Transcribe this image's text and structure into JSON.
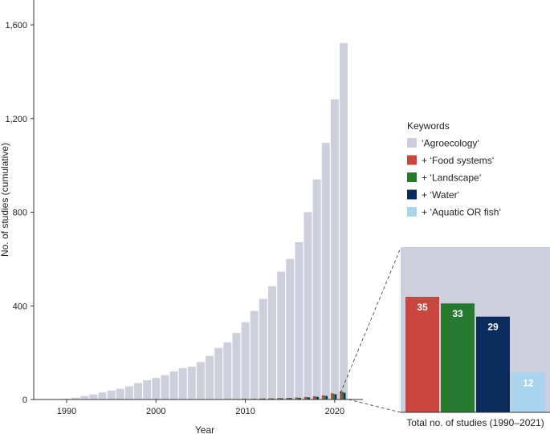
{
  "chart_data": {
    "type": "bar",
    "title": "",
    "xlabel": "Year",
    "ylabel": "No. of studies (cumulative)",
    "ylim": [
      0,
      1700
    ],
    "yticks": [
      0,
      400,
      800,
      1200,
      1600
    ],
    "ytick_labels": [
      "0",
      "400",
      "800",
      "1,200",
      "1,600"
    ],
    "xticks": [
      1990,
      2000,
      2010,
      2020
    ],
    "xtick_labels": [
      "1990",
      "2000",
      "2010",
      "2020"
    ],
    "years": [
      1990,
      1991,
      1992,
      1993,
      1994,
      1995,
      1996,
      1997,
      1998,
      1999,
      2000,
      2001,
      2002,
      2003,
      2004,
      2005,
      2006,
      2007,
      2008,
      2009,
      2010,
      2011,
      2012,
      2013,
      2014,
      2015,
      2016,
      2017,
      2018,
      2019,
      2020,
      2021
    ],
    "series": [
      {
        "name": "‘Agroecology‘",
        "color": "#cdcfdc",
        "values": [
          3,
          8,
          15,
          22,
          30,
          38,
          46,
          56,
          70,
          82,
          92,
          104,
          120,
          134,
          140,
          160,
          186,
          220,
          244,
          284,
          330,
          378,
          430,
          484,
          546,
          600,
          672,
          800,
          940,
          1096,
          1282,
          1522
        ]
      },
      {
        "name": "+ ‘Food systems‘",
        "color": "#c8463d",
        "values": [
          0,
          0,
          0,
          0,
          0,
          0,
          0,
          0,
          0,
          0,
          0,
          0,
          0,
          0,
          1,
          1,
          1,
          1,
          2,
          2,
          3,
          3,
          4,
          5,
          6,
          7,
          9,
          11,
          14,
          18,
          27,
          35
        ]
      },
      {
        "name": "+ ‘Landscape‘",
        "color": "#27792f",
        "values": [
          0,
          0,
          0,
          0,
          0,
          0,
          0,
          0,
          0,
          0,
          0,
          0,
          0,
          1,
          1,
          1,
          1,
          2,
          2,
          2,
          3,
          3,
          4,
          5,
          6,
          7,
          8,
          10,
          13,
          17,
          25,
          33
        ]
      },
      {
        "name": "+ ‘Water‘",
        "color": "#0b2b5c",
        "values": [
          0,
          0,
          0,
          0,
          0,
          0,
          0,
          0,
          0,
          0,
          0,
          0,
          0,
          0,
          1,
          1,
          1,
          1,
          2,
          2,
          2,
          3,
          4,
          4,
          5,
          6,
          7,
          9,
          11,
          15,
          22,
          29
        ]
      },
      {
        "name": "+ ‘Aquatic OR fish‘",
        "color": "#a9d4ee",
        "values": [
          0,
          0,
          0,
          0,
          0,
          0,
          0,
          0,
          0,
          0,
          0,
          0,
          0,
          0,
          0,
          0,
          0,
          0,
          0,
          0,
          0,
          0,
          0,
          1,
          1,
          1,
          2,
          3,
          4,
          6,
          9,
          12
        ]
      }
    ],
    "legend_title": "Keywords",
    "legend_position": "right",
    "inset": {
      "caption": "Total no. of studies (1990–2021)",
      "categories": [
        "+ ‘Food systems‘",
        "+ ‘Landscape‘",
        "+ ‘Water‘",
        "+ ‘Aquatic OR fish‘"
      ],
      "values": [
        35,
        33,
        29,
        12
      ],
      "labels": [
        "35",
        "33",
        "29",
        "12"
      ],
      "colors": [
        "#c8463d",
        "#27792f",
        "#0b2b5c",
        "#a9d4ee"
      ]
    }
  }
}
